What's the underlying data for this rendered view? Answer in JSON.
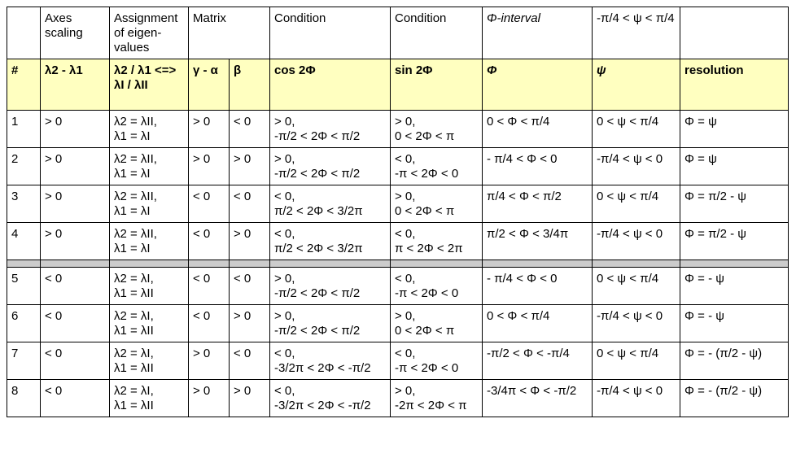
{
  "top": [
    "",
    "Axes scaling",
    "Assignment of eigen-values",
    "Matrix",
    "",
    "Condition",
    "Condition",
    "Φ-interval",
    "-π/4 < ψ < π/4",
    ""
  ],
  "header": [
    "#",
    "λ2 - λ1",
    "λ2 / λ1 <=> λI / λII",
    "γ - α",
    "β",
    "cos 2Φ",
    "sin 2Φ",
    "Φ",
    "ψ",
    "resolution"
  ],
  "rows": [
    {
      "n": "1",
      "axes": "> 0",
      "eig": [
        "λ2 = λII,",
        "λ1 = λI"
      ],
      "ga": "> 0",
      "b": "< 0",
      "cos": [
        "> 0,",
        "-π/2 < 2Φ < π/2"
      ],
      "sin": [
        "> 0,",
        "0 < 2Φ < π"
      ],
      "phi": "0 < Φ < π/4",
      "psi": "0 < ψ < π/4",
      "res": "Φ =  ψ"
    },
    {
      "n": "2",
      "axes": "> 0",
      "eig": [
        "λ2 = λII,",
        "λ1 = λI"
      ],
      "ga": "> 0",
      "b": "> 0",
      "cos": [
        "> 0,",
        "-π/2 < 2Φ < π/2"
      ],
      "sin": [
        "< 0,",
        "-π < 2Φ < 0"
      ],
      "phi": "- π/4 < Φ < 0",
      "psi": "-π/4 < ψ < 0",
      "res": "Φ =  ψ"
    },
    {
      "n": "3",
      "axes": "> 0",
      "eig": [
        "λ2 = λII,",
        "λ1 = λI"
      ],
      "ga": "< 0",
      "b": "< 0",
      "cos": [
        "< 0,",
        "π/2 < 2Φ < 3/2π"
      ],
      "sin": [
        "> 0,",
        "0 < 2Φ < π"
      ],
      "phi": "π/4 < Φ < π/2",
      "psi": "0 < ψ < π/4",
      "res": "Φ =  π/2 - ψ"
    },
    {
      "n": "4",
      "axes": "> 0",
      "eig": [
        "λ2 = λII,",
        "λ1 = λI"
      ],
      "ga": "< 0",
      "b": "> 0",
      "cos": [
        "< 0,",
        "π/2 < 2Φ < 3/2π"
      ],
      "sin": [
        "< 0,",
        "π < 2Φ < 2π"
      ],
      "phi": "π/2 < Φ < 3/4π",
      "psi": "-π/4 < ψ < 0",
      "res": "Φ =  π/2 - ψ"
    },
    {
      "n": "5",
      "axes": "< 0",
      "eig": [
        "λ2 = λI,",
        "λ1 = λII"
      ],
      "ga": "< 0",
      "b": "< 0",
      "cos": [
        "> 0,",
        "-π/2 < 2Φ < π/2"
      ],
      "sin": [
        "< 0,",
        "-π < 2Φ < 0"
      ],
      "phi": "- π/4 < Φ < 0",
      "psi": "0 < ψ < π/4",
      "res": "Φ =  - ψ"
    },
    {
      "n": "6",
      "axes": "< 0",
      "eig": [
        "λ2 = λI,",
        "λ1 = λII"
      ],
      "ga": "< 0",
      "b": "> 0",
      "cos": [
        "> 0,",
        "-π/2 < 2Φ < π/2"
      ],
      "sin": [
        "> 0,",
        "0 < 2Φ < π"
      ],
      "phi": "0 < Φ < π/4",
      "psi": "-π/4 < ψ < 0",
      "res": "Φ =  - ψ"
    },
    {
      "n": "7",
      "axes": "< 0",
      "eig": [
        "λ2 = λI,",
        "λ1 = λII"
      ],
      "ga": "> 0",
      "b": "< 0",
      "cos": [
        "< 0,",
        "-3/2π < 2Φ < -π/2"
      ],
      "sin": [
        "< 0,",
        "-π < 2Φ < 0"
      ],
      "phi": "-π/2 < Φ < -π/4",
      "psi": "0 < ψ < π/4",
      "res": "Φ =  - (π/2 - ψ)"
    },
    {
      "n": "8",
      "axes": "< 0",
      "eig": [
        "λ2 = λI,",
        "λ1 = λII"
      ],
      "ga": "> 0",
      "b": "> 0",
      "cos": [
        "< 0,",
        "-3/2π < 2Φ < -π/2"
      ],
      "sin": [
        "> 0,",
        "-2π < 2Φ < π"
      ],
      "phi": "-3/4π <  Φ < -π/2",
      "psi": "-π/4 < ψ < 0",
      "res": "Φ =  - (π/2 - ψ)"
    }
  ]
}
